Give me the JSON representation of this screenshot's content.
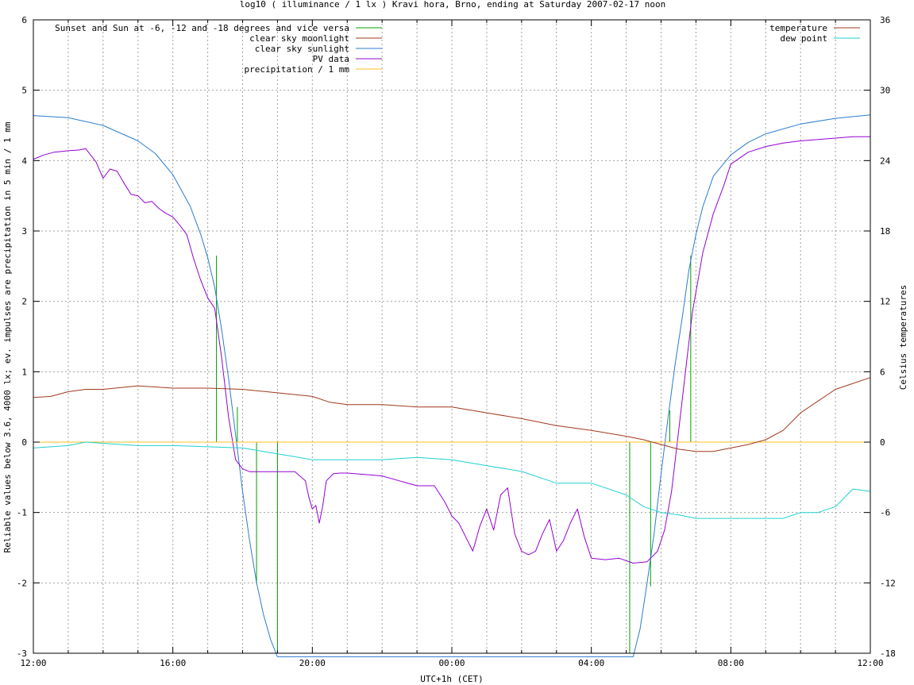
{
  "chart_data": {
    "type": "line",
    "title": "log10 ( illuminance / 1 lx ) Kravi hora, Brno, ending at Saturday 2007-02-17 noon",
    "xlabel": "UTC+1h (CET)",
    "ylabel": "Reliable values below 3.6, 4000 lx; ev. impulses are precipitation in 5 min / 1 mm",
    "y2label": "Celsius temperatures",
    "x_unit": "hours since 2007-02-16 12:00 CET",
    "xlim": [
      0,
      24
    ],
    "ylim": [
      -3,
      6
    ],
    "y2lim": [
      -18,
      36
    ],
    "x_ticks": [
      {
        "x": 0,
        "label": "12:00"
      },
      {
        "x": 4,
        "label": "16:00"
      },
      {
        "x": 8,
        "label": "20:00"
      },
      {
        "x": 12,
        "label": "00:00"
      },
      {
        "x": 16,
        "label": "04:00"
      },
      {
        "x": 20,
        "label": "08:00"
      },
      {
        "x": 24,
        "label": "12:00"
      }
    ],
    "y_ticks": [
      "-3",
      "-2",
      "-1",
      "0",
      "1",
      "2",
      "3",
      "4",
      "5",
      "6"
    ],
    "y2_ticks": [
      "-18",
      "-12",
      "-6",
      "0",
      "6",
      "12",
      "18",
      "24",
      "30",
      "36"
    ],
    "grid": true,
    "legend_left": [
      {
        "label": "Sunset and Sun at -6, -12 and -18 degrees and vice versa",
        "color": "#00a000"
      },
      {
        "label": "clear sky moonlight",
        "color": "#a0391d"
      },
      {
        "label": "clear sky sunlight",
        "color": "#2b7bd0"
      },
      {
        "label": "PV data",
        "color": "#9400d3"
      },
      {
        "label": "precipitation / 1 mm",
        "color": "#ffc020"
      }
    ],
    "legend_right": [
      {
        "label": "temperature",
        "color": "#a0391d"
      },
      {
        "label": "dew point",
        "color": "#20d0d0"
      }
    ],
    "series": [
      {
        "name": "Sunset and Sun at -6, -12 and -18 degrees and vice versa",
        "axis": "y",
        "impulses": [
          {
            "x": 5.25,
            "y": 2.65
          },
          {
            "x": 5.85,
            "y": 0.5
          },
          {
            "x": 6.4,
            "y": -2.0
          },
          {
            "x": 7.0,
            "y": -3.0
          },
          {
            "x": 17.1,
            "y": -3.0
          },
          {
            "x": 17.7,
            "y": -2.05
          },
          {
            "x": 18.25,
            "y": 0.45
          },
          {
            "x": 18.85,
            "y": 2.65
          }
        ]
      },
      {
        "name": "clear sky sunlight",
        "axis": "y",
        "x": [
          0,
          1,
          2,
          3,
          3.5,
          4,
          4.5,
          4.8,
          5.0,
          5.2,
          5.4,
          5.6,
          5.8,
          6.0,
          6.2,
          6.4,
          6.6,
          6.8,
          7.0,
          17.2,
          17.4,
          17.6,
          17.8,
          18.0,
          18.2,
          18.4,
          18.6,
          18.8,
          19.0,
          19.2,
          19.5,
          20.0,
          20.5,
          21,
          22,
          23,
          24
        ],
        "values": [
          4.64,
          4.61,
          4.5,
          4.28,
          4.1,
          3.8,
          3.35,
          2.95,
          2.62,
          2.2,
          1.6,
          0.9,
          0.1,
          -0.7,
          -1.4,
          -2.0,
          -2.45,
          -2.8,
          -3.05,
          -3.05,
          -2.65,
          -2.0,
          -1.3,
          -0.45,
          0.35,
          1.1,
          1.75,
          2.45,
          2.95,
          3.35,
          3.78,
          4.08,
          4.26,
          4.38,
          4.52,
          4.6,
          4.65
        ]
      },
      {
        "name": "PV data",
        "axis": "y",
        "x": [
          0,
          0.3,
          0.6,
          1.0,
          1.3,
          1.5,
          1.8,
          2.0,
          2.2,
          2.4,
          2.6,
          2.8,
          3.0,
          3.2,
          3.4,
          3.6,
          3.8,
          4.0,
          4.2,
          4.4,
          4.6,
          4.8,
          5.0,
          5.2,
          5.4,
          5.6,
          5.8,
          6.0,
          6.2,
          6.5,
          7.0,
          7.5,
          7.8,
          7.9,
          8.0,
          8.1,
          8.2,
          8.3,
          8.4,
          8.6,
          8.8,
          9.0,
          9.5,
          10.0,
          10.5,
          11.0,
          11.5,
          11.8,
          12.0,
          12.2,
          12.4,
          12.6,
          12.8,
          13.0,
          13.2,
          13.4,
          13.6,
          13.8,
          14.0,
          14.2,
          14.4,
          14.6,
          14.8,
          15.0,
          15.2,
          15.4,
          15.6,
          15.8,
          16.0,
          16.4,
          16.8,
          17.2,
          17.6,
          17.9,
          18.1,
          18.3,
          18.5,
          18.7,
          18.9,
          19.2,
          19.5,
          19.8,
          20.0,
          20.5,
          21.0,
          21.5,
          22.0,
          22.5,
          23.0,
          23.5,
          24.0
        ],
        "values": [
          4.02,
          4.08,
          4.12,
          4.14,
          4.15,
          4.17,
          3.98,
          3.75,
          3.88,
          3.85,
          3.68,
          3.52,
          3.5,
          3.4,
          3.42,
          3.32,
          3.25,
          3.2,
          3.08,
          2.95,
          2.6,
          2.3,
          2.05,
          1.9,
          1.2,
          0.35,
          -0.25,
          -0.38,
          -0.42,
          -0.42,
          -0.42,
          -0.42,
          -0.55,
          -0.78,
          -0.95,
          -0.9,
          -1.15,
          -0.9,
          -0.55,
          -0.45,
          -0.44,
          -0.44,
          -0.46,
          -0.48,
          -0.55,
          -0.62,
          -0.62,
          -0.85,
          -1.05,
          -1.15,
          -1.35,
          -1.55,
          -1.2,
          -0.95,
          -1.25,
          -0.75,
          -0.65,
          -1.3,
          -1.55,
          -1.6,
          -1.55,
          -1.3,
          -1.1,
          -1.55,
          -1.4,
          -1.15,
          -0.95,
          -1.35,
          -1.65,
          -1.67,
          -1.65,
          -1.72,
          -1.7,
          -1.55,
          -1.25,
          -0.7,
          0.15,
          1.0,
          1.85,
          2.7,
          3.25,
          3.65,
          3.95,
          4.12,
          4.2,
          4.25,
          4.28,
          4.3,
          4.32,
          4.34,
          4.34
        ]
      },
      {
        "name": "precipitation / 1 mm",
        "axis": "y",
        "x": [
          0,
          24
        ],
        "values": [
          0,
          0
        ]
      },
      {
        "name": "temperature",
        "axis": "y2",
        "x": [
          0,
          0.5,
          1,
          1.5,
          2,
          3,
          4,
          5,
          6,
          7,
          8,
          8.5,
          9,
          10,
          11,
          12,
          13,
          14,
          15,
          16,
          17,
          17.5,
          18,
          18.5,
          19,
          19.5,
          20,
          20.5,
          21,
          21.5,
          22,
          22.5,
          23,
          23.5,
          24
        ],
        "values": [
          3.8,
          3.9,
          4.3,
          4.5,
          4.5,
          4.8,
          4.6,
          4.6,
          4.5,
          4.2,
          3.9,
          3.4,
          3.2,
          3.2,
          3.0,
          3.0,
          2.5,
          2.0,
          1.4,
          1.0,
          0.5,
          0.2,
          -0.2,
          -0.6,
          -0.8,
          -0.8,
          -0.5,
          -0.2,
          0.2,
          1.0,
          2.5,
          3.5,
          4.5,
          5.0,
          5.5
        ]
      },
      {
        "name": "dew point",
        "axis": "y2",
        "x": [
          0,
          0.5,
          1,
          1.5,
          2,
          3,
          4,
          5,
          6,
          7,
          8,
          9,
          10,
          11,
          12,
          13,
          14,
          15,
          16,
          17,
          17.5,
          18,
          18.5,
          19,
          19.5,
          20,
          21,
          21.5,
          22,
          22.5,
          23,
          23.5,
          24
        ],
        "values": [
          -0.5,
          -0.4,
          -0.3,
          0,
          -0.1,
          -0.3,
          -0.3,
          -0.4,
          -0.5,
          -1.0,
          -1.5,
          -1.5,
          -1.5,
          -1.3,
          -1.5,
          -2.0,
          -2.5,
          -3.5,
          -3.5,
          -4.5,
          -5.5,
          -6.0,
          -6.2,
          -6.5,
          -6.5,
          -6.5,
          -6.5,
          -6.5,
          -6.0,
          -6.0,
          -5.5,
          -4.0,
          -4.2
        ]
      }
    ]
  }
}
